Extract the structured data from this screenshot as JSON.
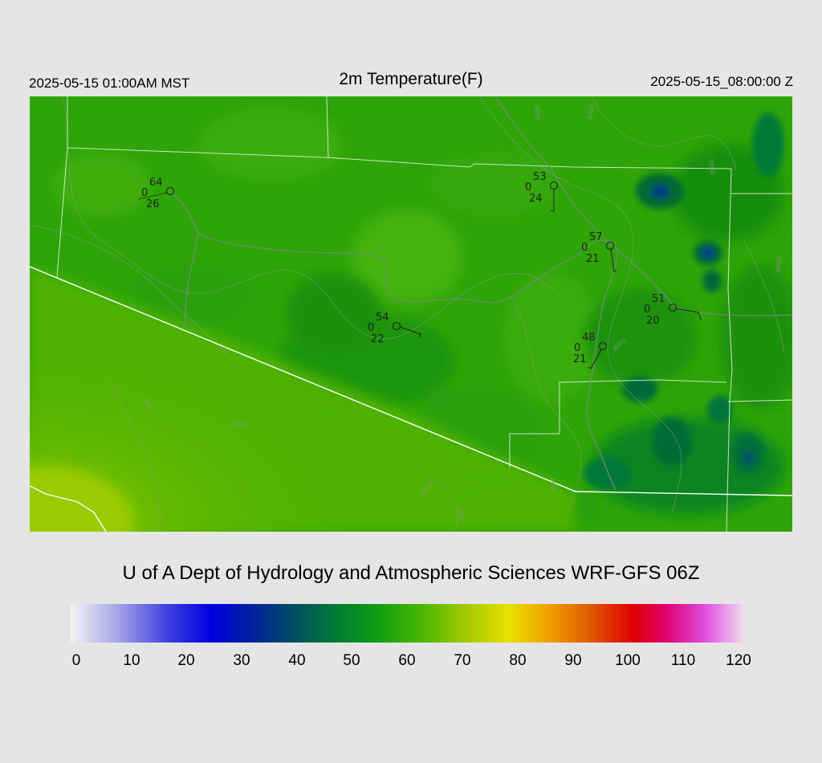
{
  "header": {
    "local_time": "2025-05-15 01:00AM MST",
    "title": "2m Temperature(F)",
    "utc_time": "2025-05-15_08:00:00 Z"
  },
  "credit": "U of A Dept of Hydrology and Atmospheric Sciences WRF-GFS 06Z",
  "colorbar": {
    "min": 0,
    "max": 120,
    "tick_labels": [
      "0",
      "10",
      "20",
      "30",
      "40",
      "50",
      "60",
      "70",
      "80",
      "90",
      "100",
      "110",
      "120"
    ],
    "stops": [
      {
        "v": 0,
        "c": "#f2f2f8"
      },
      {
        "v": 8,
        "c": "#a8a8e8"
      },
      {
        "v": 18,
        "c": "#3838e0"
      },
      {
        "v": 25,
        "c": "#0000e0"
      },
      {
        "v": 32,
        "c": "#0020a0"
      },
      {
        "v": 40,
        "c": "#005060"
      },
      {
        "v": 48,
        "c": "#008030"
      },
      {
        "v": 55,
        "c": "#10a010"
      },
      {
        "v": 63,
        "c": "#50b800"
      },
      {
        "v": 70,
        "c": "#a0c800"
      },
      {
        "v": 78,
        "c": "#e8e000"
      },
      {
        "v": 85,
        "c": "#f0a000"
      },
      {
        "v": 92,
        "c": "#e06000"
      },
      {
        "v": 100,
        "c": "#e00000"
      },
      {
        "v": 106,
        "c": "#e00070"
      },
      {
        "v": 113,
        "c": "#e050e0"
      },
      {
        "v": 120,
        "c": "#f0e0f0"
      }
    ]
  },
  "map": {
    "stations": [
      {
        "temp": "64",
        "mid": "0",
        "dew": "26"
      },
      {
        "temp": "53",
        "mid": "0",
        "dew": "24"
      },
      {
        "temp": "57",
        "mid": "0",
        "dew": "21"
      },
      {
        "temp": "51",
        "mid": "0",
        "dew": "20"
      },
      {
        "temp": "54",
        "mid": "0",
        "dew": "22"
      },
      {
        "temp": "48",
        "mid": "0",
        "dew": "21"
      }
    ],
    "contour_labels": [
      "3000",
      "3000",
      "3000",
      "4000",
      "1000",
      "2000",
      "3000",
      "3000",
      "4000",
      "3000"
    ]
  }
}
